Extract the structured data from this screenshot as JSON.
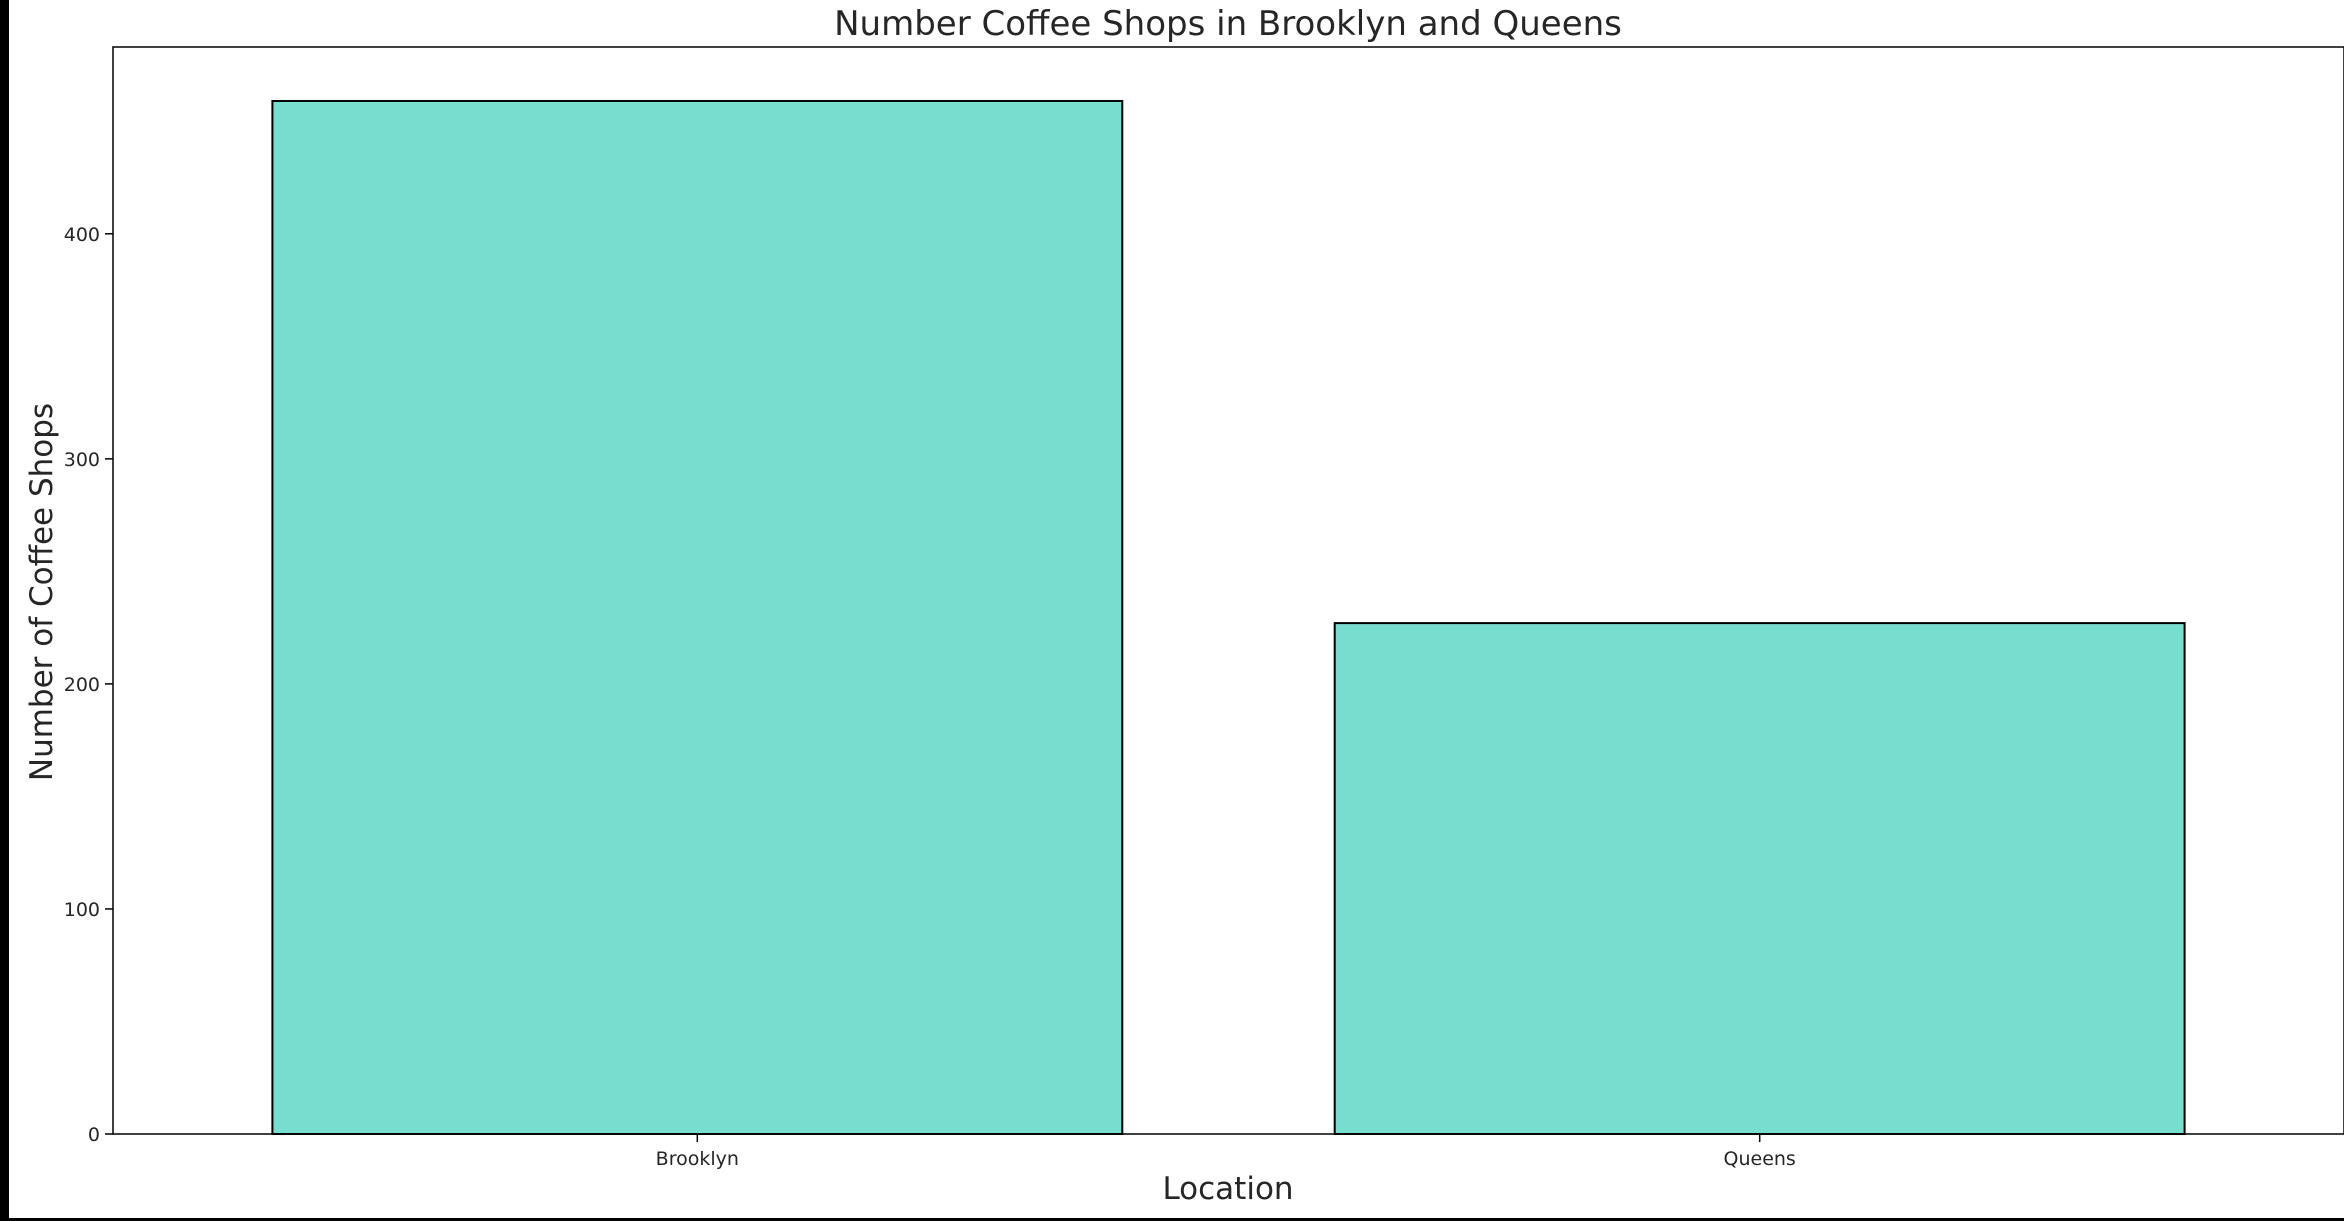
{
  "colors": {
    "bar_fill": "#76ddcf",
    "bar_edge": "#000000",
    "axis": "#000000",
    "text": "#262626",
    "background": "#ffffff",
    "window_frame": "#000000"
  },
  "chart_data": {
    "type": "bar",
    "title": "Number Coffee Shops in Brooklyn and Queens",
    "xlabel": "Location",
    "ylabel": "Number of Coffee Shops",
    "categories": [
      "Brooklyn",
      "Queens"
    ],
    "values": [
      459,
      227
    ],
    "ylim": [
      0,
      483
    ],
    "yticks": [
      0,
      100,
      200,
      300,
      400
    ],
    "grid": false,
    "legend": "none"
  }
}
